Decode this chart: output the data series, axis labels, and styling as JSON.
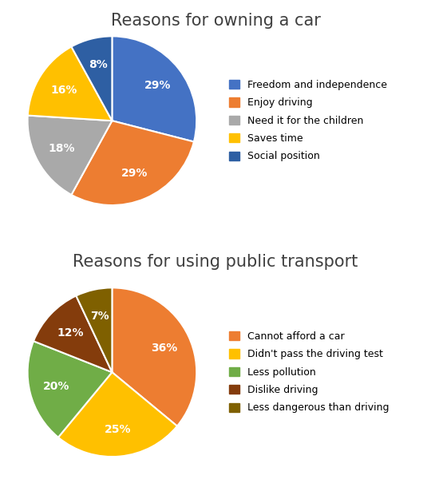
{
  "chart1": {
    "title": "Reasons for owning a car",
    "labels": [
      "Freedom and independence",
      "Enjoy driving",
      "Need it for the children",
      "Saves time",
      "Social position"
    ],
    "values": [
      29,
      29,
      18,
      16,
      8
    ],
    "colors": [
      "#4472C4",
      "#ED7D31",
      "#A9A9A9",
      "#FFC000",
      "#2E5FA3"
    ],
    "startangle": 90,
    "pct_labels": [
      "29%",
      "29%",
      "18%",
      "16%",
      "8%"
    ]
  },
  "chart2": {
    "title": "Reasons for using public transport",
    "labels": [
      "Cannot afford a car",
      "Didn't pass the driving test",
      "Less pollution",
      "Dislike driving",
      "Less dangerous than driving"
    ],
    "values": [
      36,
      25,
      20,
      12,
      7
    ],
    "colors": [
      "#ED7D31",
      "#FFC000",
      "#70AD47",
      "#843C0C",
      "#7F6000"
    ],
    "startangle": 90,
    "pct_labels": [
      "36%",
      "25%",
      "20%",
      "12%",
      "7%"
    ]
  },
  "background_color": "#FFFFFF",
  "title_fontsize": 15,
  "legend_fontsize": 9,
  "pct_fontsize": 10,
  "title_color": "#404040"
}
